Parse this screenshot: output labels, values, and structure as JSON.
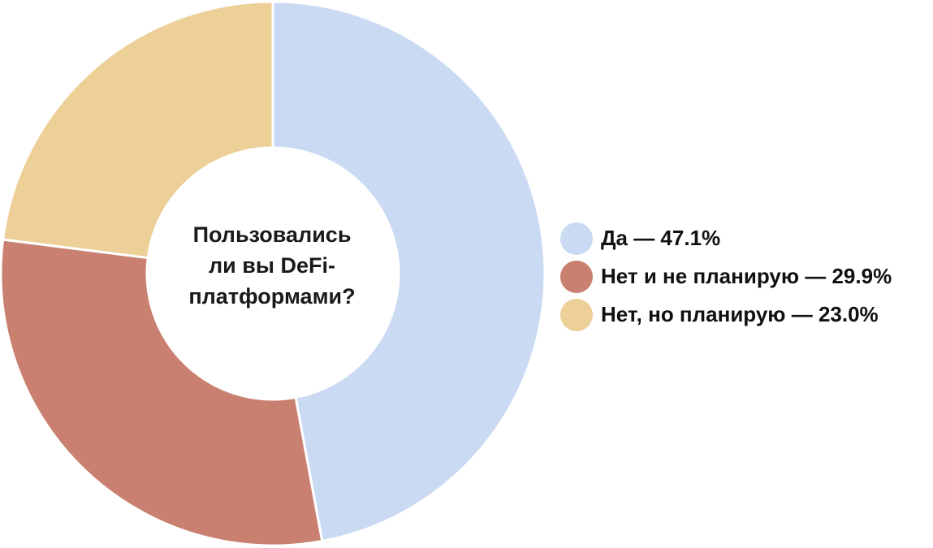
{
  "chart_data": {
    "type": "pie",
    "donut": true,
    "title": "Пользовались ли вы DeFi-платформами?",
    "title_lines": [
      "Пользовались",
      "ли вы DeFi-",
      "платформами?"
    ],
    "categories": [
      "Да",
      "Нет и не планирую",
      "Нет, но планирую"
    ],
    "values": [
      47.1,
      29.9,
      23.0
    ],
    "unit": "%",
    "colors": [
      "#CADAF3",
      "#C98070",
      "#EDCF98"
    ],
    "legend_labels": [
      "Да — 47.1%",
      "Нет и не планирую — 29.9%",
      "Нет, но планирую — 23.0%"
    ],
    "legend_position": "right",
    "start_angle": "top",
    "direction": "clockwise"
  }
}
